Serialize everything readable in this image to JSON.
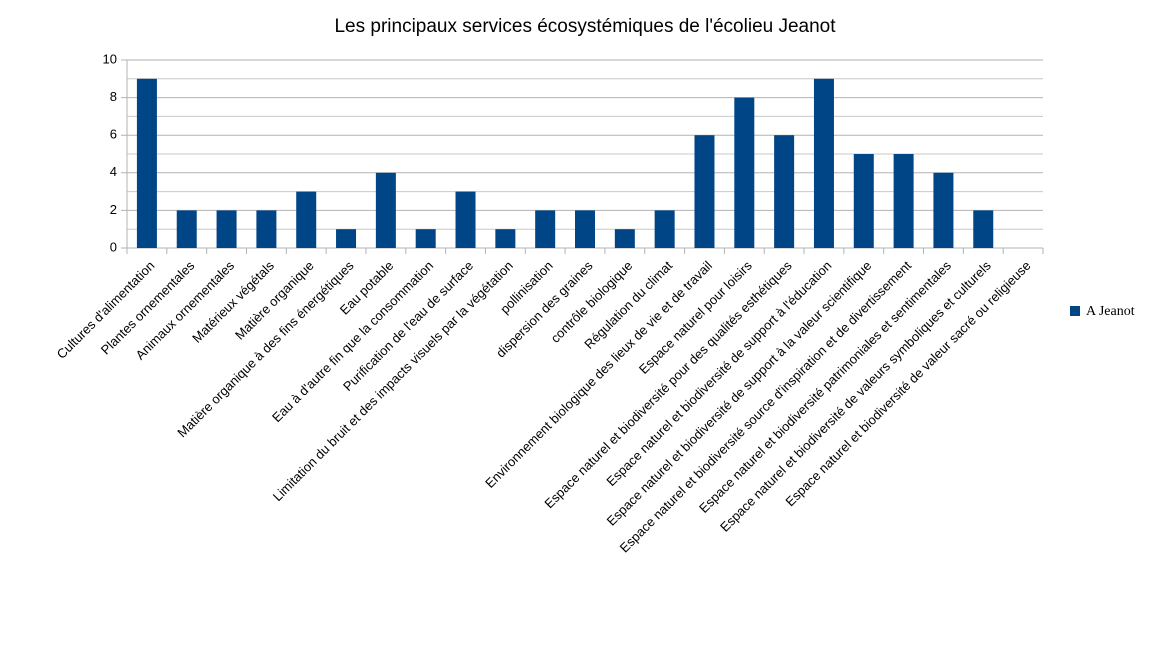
{
  "chart_data": {
    "type": "bar",
    "title": "Les principaux services écosystémiques de l'écolieu Jeanot",
    "categories": [
      "Cultures d'alimentation",
      "Plantes ornementales",
      "Animaux ornementales",
      "Matérieux végétals",
      "Matière organique",
      "Matière organique à des fins énergétiques",
      "Eau potable",
      "Eau à d'autre fin que la consommation",
      "Purification de l'eau de surface",
      "Limitation du bruit et des impacts visuels par la végétation",
      "pollinisation",
      "dispersion des graines",
      "contrôle biologique",
      "Régulation du climat",
      "Environnement biologique des lieux de vie et de travail",
      "Espace naturel pour loisirs",
      "Espace naturel et biodiversité pour des qualités esthétiques",
      "Espace naturel et biodiversité de support à l'éducation",
      "Espace naturel et biodiversité de support à la valeur scientifique",
      "Espace naturel et biodiversité source d'inspiration et de divertissement",
      "Espace naturel et biodiversité patrimoniales et sentimentales",
      "Espace naturel et biodiversité de valeurs symboliques et culturels",
      "Espace naturel et biodiversité de valeur sacré ou religieuse"
    ],
    "series": [
      {
        "name": "A Jeanot",
        "color": "#004586",
        "values": [
          9,
          2,
          2,
          2,
          3,
          1,
          4,
          1,
          3,
          1,
          2,
          2,
          1,
          2,
          6,
          8,
          6,
          9,
          5,
          5,
          4,
          2,
          0
        ]
      }
    ],
    "ylim": [
      0,
      10
    ],
    "yticks": [
      0,
      2,
      4,
      6,
      8,
      10
    ],
    "yminorticks": [
      1,
      3,
      5,
      7,
      9
    ],
    "grid": true,
    "legend": "right"
  }
}
